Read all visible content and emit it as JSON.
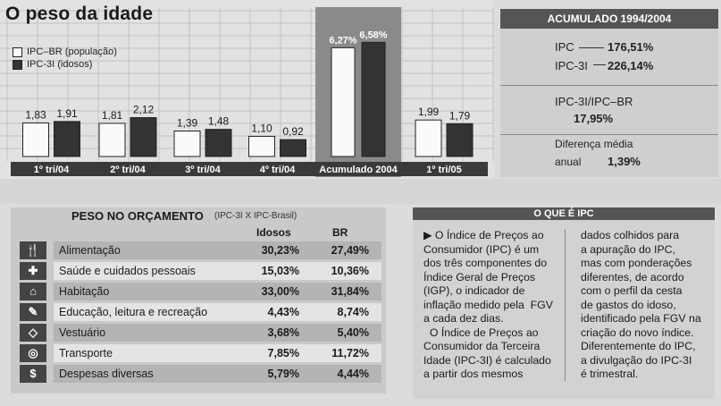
{
  "title": "O peso da idade",
  "colors": {
    "light_bar": "#fafafa",
    "dark_bar": "#333333",
    "highlight_bg": "#8a8a8a",
    "label_bg": "#3a3a3a"
  },
  "chart_data": {
    "type": "bar",
    "categories": [
      "1º tri/04",
      "2º tri/04",
      "3º tri/04",
      "4º tri/04",
      "Acumulado 2004",
      "1º tri/05"
    ],
    "series": [
      {
        "name": "IPC–BR (população)",
        "values": [
          1.83,
          1.81,
          1.39,
          1.1,
          6.27,
          1.99
        ],
        "labels": [
          "1,83",
          "1,81",
          "1,39",
          "1,10",
          "6,27%",
          "1,99"
        ]
      },
      {
        "name": "IPC-3I (idosos)",
        "values": [
          1.91,
          2.12,
          1.48,
          0.92,
          6.58,
          1.79
        ],
        "labels": [
          "1,91",
          "2,12",
          "1,48",
          "0,92",
          "6,58%",
          "1,79"
        ]
      }
    ],
    "grid": true,
    "legend": "top-left",
    "highlight": "Acumulado 2004"
  },
  "acumulado": {
    "heading": "ACUMULADO 1994/2004",
    "ipc_label": "IPC",
    "ipc_value": "176,51%",
    "ipc3i_label": "IPC-3I",
    "ipc3i_value": "226,14%",
    "ratio_label": "IPC-3I/IPC–BR",
    "ratio_value": "17,95%",
    "diff_label_1": "Diferença média",
    "diff_label_2": "anual",
    "diff_value": "1,39%"
  },
  "budget": {
    "heading": "PESO NO ORÇAMENTO",
    "subheading": "(IPC-3I X IPC-Brasil)",
    "col_idosos": "Idosos",
    "col_br": "BR",
    "rows": [
      {
        "label": "Alimentação",
        "idosos": "30,23%",
        "br": "27,49%",
        "icon": "food-icon",
        "glyph": "🍴"
      },
      {
        "label": "Saúde e cuidados pessoais",
        "idosos": "15,03%",
        "br": "10,36%",
        "icon": "health-cross-icon",
        "glyph": "✚"
      },
      {
        "label": "Habitação",
        "idosos": "33,00%",
        "br": "31,84%",
        "icon": "house-icon",
        "glyph": "⌂"
      },
      {
        "label": "Educação, leitura e recreação",
        "idosos": "4,43%",
        "br": "8,74%",
        "icon": "education-icon",
        "glyph": "✎"
      },
      {
        "label": "Vestuário",
        "idosos": "3,68%",
        "br": "5,40%",
        "icon": "clothing-icon",
        "glyph": "◇"
      },
      {
        "label": "Transporte",
        "idosos": "7,85%",
        "br": "11,72%",
        "icon": "transport-wheel-icon",
        "glyph": "◎"
      },
      {
        "label": "Despesas diversas",
        "idosos": "5,79%",
        "br": "4,44%",
        "icon": "dollar-icon",
        "glyph": "$"
      }
    ]
  },
  "ipc_box": {
    "heading": "O QUE É IPC",
    "col1_lines": [
      "▶ O Índice de Preços ao",
      "Consumidor (IPC) é um",
      "dos três componentes do",
      "Índice Geral de Preços",
      "(IGP), o indicador de",
      "inflação medido pela  FGV",
      "a cada dez dias.",
      "  O Índice de Preços ao",
      "Consumidor da Terceira",
      "Idade (IPC-3I) é calculado",
      "a partir dos mesmos"
    ],
    "col2_lines": [
      "dados colhidos para",
      "a apuração do IPC,",
      "mas com ponderações",
      "diferentes, de acordo",
      "com o perfil da cesta",
      "de gastos do idoso,",
      "identificado pela FGV na",
      "criação do novo índice.",
      "Diferentemente do IPC,",
      "a divulgação do IPC-3I",
      "é trimestral."
    ]
  }
}
